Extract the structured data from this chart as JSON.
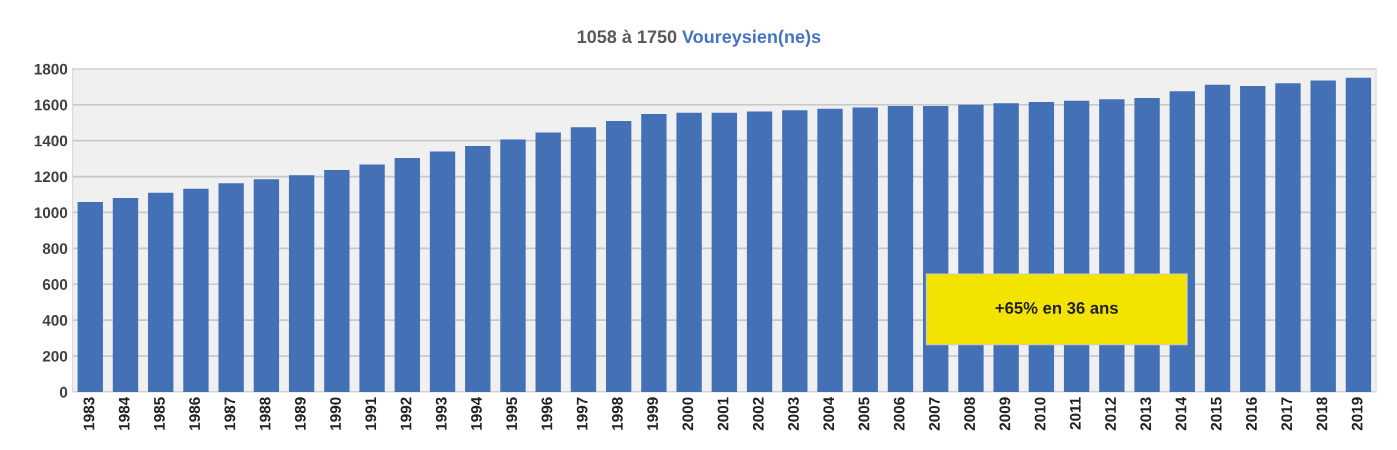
{
  "chart_data": {
    "type": "bar",
    "title": "1058 à 1750 Voureysien(ne)s",
    "categories": [
      "1983",
      "1984",
      "1985",
      "1986",
      "1987",
      "1988",
      "1989",
      "1990",
      "1991",
      "1992",
      "1993",
      "1994",
      "1995",
      "1996",
      "1997",
      "1998",
      "1999",
      "2000",
      "2001",
      "2002",
      "2003",
      "2004",
      "2005",
      "2006",
      "2007",
      "2008",
      "2009",
      "2010",
      "2011",
      "2012",
      "2013",
      "2014",
      "2015",
      "2016",
      "2017",
      "2018",
      "2019"
    ],
    "values": [
      1058,
      1080,
      1110,
      1132,
      1162,
      1185,
      1207,
      1237,
      1267,
      1303,
      1340,
      1370,
      1407,
      1445,
      1475,
      1510,
      1548,
      1556,
      1556,
      1563,
      1570,
      1578,
      1585,
      1593,
      1593,
      1600,
      1608,
      1615,
      1622,
      1630,
      1637,
      1675,
      1712,
      1705,
      1720,
      1735,
      1750
    ],
    "color": "#4471b6",
    "ylim": [
      0,
      1800
    ],
    "yticks": [
      0,
      200,
      400,
      600,
      800,
      1000,
      1200,
      1400,
      1600,
      1800
    ],
    "grid": "y",
    "legend": false,
    "annotations": [
      "+65% en 36 ans"
    ]
  }
}
